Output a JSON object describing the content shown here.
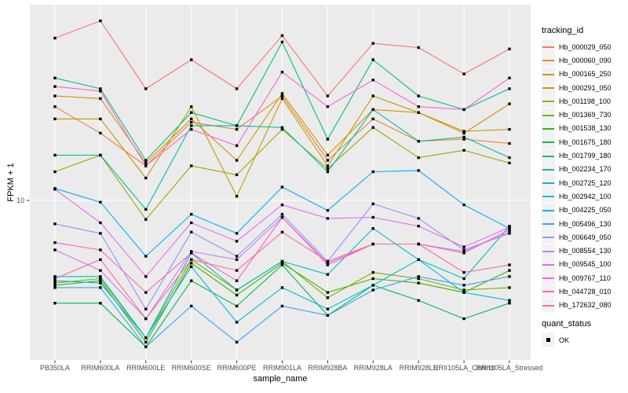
{
  "figure": {
    "panel_bg": "#EBEBEB",
    "grid_color": "#FFFFFF",
    "point_color": "#000000",
    "tick_color": "#333333",
    "axis_text_color": "#4D4D4D",
    "legend_key_bg": "#F2F2F2"
  },
  "axes": {
    "y_tick_label": "10"
  },
  "legend": {
    "tracking_title": "tracking_id",
    "quant_title": "quant_status",
    "quant_label": "OK"
  },
  "chart_data": {
    "type": "line",
    "title": "",
    "xlabel": "sample_name",
    "ylabel": "FPKM + 1",
    "y_scale": "log10",
    "y_ticks": [
      10
    ],
    "y_range_approx": [
      1.5,
      100
    ],
    "grid": true,
    "marker": "black-square",
    "legend_position": "right",
    "legend_title": "tracking_id",
    "quant_status": "OK",
    "categories": [
      "PB350LA",
      "RRIM600LA",
      "RRIM600LE",
      "RRIM600SE",
      "RRIM600PE",
      "RRIM901LA",
      "RRIM928BA",
      "RRIM928LA",
      "RRIM928LE",
      "RRII105LA_Control",
      "RRII105LA_Stressed"
    ],
    "series": [
      {
        "name": "Hb_000029_050",
        "color": "#F8766D",
        "values": [
          67,
          82,
          37,
          52,
          37,
          69,
          34,
          63,
          60,
          44,
          59
        ]
      },
      {
        "name": "Hb_000060_090",
        "color": "#EA8331",
        "values": [
          30,
          22,
          15,
          25,
          23,
          34,
          16,
          26,
          20,
          20.5,
          19.5
        ]
      },
      {
        "name": "Hb_000165_250",
        "color": "#D89000",
        "values": [
          34,
          33,
          15.5,
          26,
          16,
          35,
          17,
          29,
          28,
          22,
          31
        ]
      },
      {
        "name": "Hb_000291_050",
        "color": "#C09B00",
        "values": [
          26,
          26,
          13,
          30,
          10.5,
          33,
          15,
          34,
          28,
          22.5,
          23
        ]
      },
      {
        "name": "Hb_001198_100",
        "color": "#A3A500",
        "values": [
          14,
          17,
          8,
          15,
          13.5,
          23,
          14.5,
          23.5,
          16.5,
          18,
          15.5
        ]
      },
      {
        "name": "Hb_001369_730",
        "color": "#7CAE00",
        "values": [
          3.8,
          4.0,
          2.0,
          5.0,
          3.5,
          4.9,
          3.2,
          4.3,
          4.0,
          3.5,
          3.6
        ]
      },
      {
        "name": "Hb_001538_130",
        "color": "#39B600",
        "values": [
          3.7,
          3.9,
          1.9,
          4.8,
          3.3,
          4.8,
          3.4,
          4.0,
          3.8,
          3.4,
          4.4
        ]
      },
      {
        "name": "Hb_001675_180",
        "color": "#00BB4E",
        "values": [
          3.0,
          3.0,
          1.8,
          3.9,
          2.9,
          4.7,
          2.6,
          3.7,
          3.1,
          2.5,
          3.0
        ]
      },
      {
        "name": "Hb_001799_180",
        "color": "#00BF7D",
        "values": [
          42,
          37,
          16,
          28,
          24,
          64,
          20.5,
          52,
          34,
          29,
          37
        ]
      },
      {
        "name": "Hb_002234_170",
        "color": "#00C1A3",
        "values": [
          17,
          17,
          9,
          24,
          24,
          23.5,
          14,
          29,
          20,
          21,
          16.5
        ]
      },
      {
        "name": "Hb_002725_120",
        "color": "#00BFC4",
        "values": [
          4.1,
          4.1,
          2.0,
          5.4,
          3.5,
          4.9,
          4.2,
          7.2,
          5.0,
          4.0,
          7.4
        ]
      },
      {
        "name": "Hb_002942_100",
        "color": "#00BAE0",
        "values": [
          3.9,
          3.8,
          2.0,
          4.6,
          2.4,
          3.6,
          2.8,
          3.7,
          5.0,
          3.4,
          3.1
        ]
      },
      {
        "name": "Hb_004225_050",
        "color": "#00B0F6",
        "values": [
          11.5,
          9.8,
          5.2,
          8.5,
          6.8,
          11.7,
          8.9,
          14,
          14.2,
          9.5,
          7.2
        ]
      },
      {
        "name": "Hb_005496_130",
        "color": "#35A2FF",
        "values": [
          3.6,
          3.6,
          1.8,
          2.9,
          1.9,
          2.9,
          2.6,
          3.5,
          4.1,
          3.7,
          4.1
        ]
      },
      {
        "name": "Hb_006649_050",
        "color": "#9590FF",
        "values": [
          7.6,
          6.8,
          2.8,
          6.9,
          5.2,
          8.5,
          4.9,
          9.6,
          8.1,
          5.6,
          6.8
        ]
      },
      {
        "name": "Hb_008554_130",
        "color": "#C77CFF",
        "values": [
          5.6,
          4.4,
          2.5,
          5.5,
          5.0,
          8.2,
          4.8,
          6.0,
          6.0,
          5.5,
          6.9
        ]
      },
      {
        "name": "Hb_009545_100",
        "color": "#E76BF3",
        "values": [
          11.4,
          7.7,
          4.1,
          7.7,
          6.2,
          9.5,
          8.1,
          8.2,
          7.4,
          5.8,
          7.3
        ]
      },
      {
        "name": "Hb_009767_110",
        "color": "#FA62DB",
        "values": [
          38,
          36,
          15,
          23,
          19,
          45,
          30,
          41,
          30,
          29,
          42
        ]
      },
      {
        "name": "Hb_044728_010",
        "color": "#FF62BC",
        "values": [
          6.1,
          5.6,
          3.4,
          5.4,
          3.9,
          8.2,
          4.7,
          6.0,
          6.0,
          5.4,
          7.1
        ]
      },
      {
        "name": "Hb_172632_080",
        "color": "#FF6A98",
        "values": [
          4.0,
          5.0,
          2.5,
          5.0,
          4.4,
          6.9,
          4.9,
          6.0,
          6.0,
          4.3,
          4.7
        ]
      }
    ]
  }
}
